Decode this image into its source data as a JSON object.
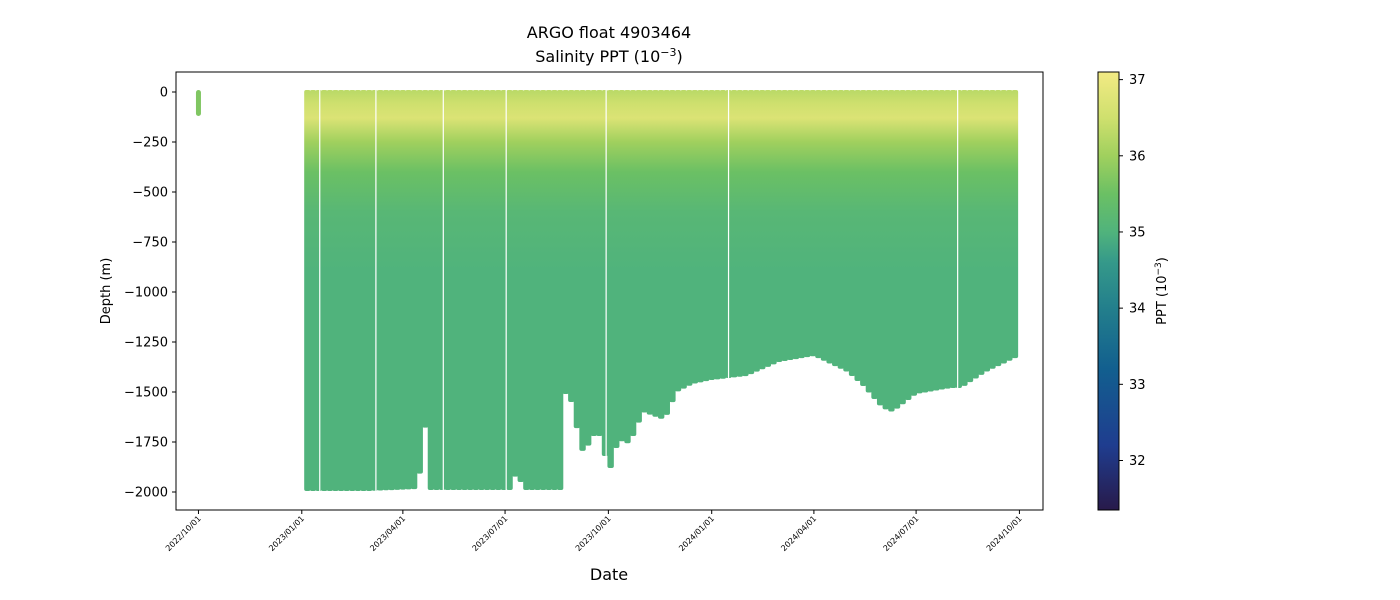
{
  "chart_data": {
    "type": "scatter",
    "title": "ARGO float 4903464",
    "subtitle_prefix": "Salinity PPT (10",
    "subtitle_sup": "−3",
    "subtitle_suffix": ")",
    "xlabel": "Date",
    "ylabel": "Depth (m)",
    "colorbar_label_prefix": "PPT (10",
    "colorbar_label_sup": "−3",
    "colorbar_label_suffix": ")",
    "colormap": "haline",
    "colorbar_range": [
      31.35,
      37.1
    ],
    "ylim": [
      -2090,
      100
    ],
    "xlim": [
      "2022-09-11",
      "2024-10-22"
    ],
    "grid": false,
    "y_ticks": [
      0,
      -250,
      -500,
      -750,
      -1000,
      -1250,
      -1500,
      -1750,
      -2000
    ],
    "y_tick_labels": [
      "0",
      "−250",
      "−500",
      "−750",
      "−1000",
      "−1250",
      "−1500",
      "−1750",
      "−2000"
    ],
    "x_ticks": [
      "2022-10-01",
      "2023-01-01",
      "2023-04-01",
      "2023-07-01",
      "2023-10-01",
      "2024-01-01",
      "2024-04-01",
      "2024-07-01",
      "2024-10-01"
    ],
    "x_tick_labels": [
      "2022/10/01",
      "2023/01/01",
      "2023/04/01",
      "2023/07/01",
      "2023/10/01",
      "2024/01/01",
      "2024/04/01",
      "2024/07/01",
      "2024/10/01"
    ],
    "colorbar_ticks": [
      32,
      33,
      34,
      35,
      36,
      37
    ],
    "colorbar_tick_labels": [
      "32",
      "33",
      "34",
      "35",
      "36",
      "37"
    ],
    "profile_interval_days": 5,
    "data_gaps": [
      "2023-01-17",
      "2023-03-08",
      "2023-05-07",
      "2023-07-02",
      "2023-09-29",
      "2024-01-16",
      "2024-08-07"
    ],
    "profiles": [
      {
        "date": "2022-10-01",
        "max_depth": -120
      },
      {
        "date": "2023-01-01",
        "max_depth": -1995
      },
      {
        "date": "2023-03-01",
        "max_depth": -1995
      },
      {
        "date": "2023-04-15",
        "max_depth": -1985
      },
      {
        "date": "2023-04-20",
        "max_depth": -1600
      },
      {
        "date": "2023-04-25",
        "max_depth": -1990
      },
      {
        "date": "2023-07-06",
        "max_depth": -1990
      },
      {
        "date": "2023-07-12",
        "max_depth": -1890
      },
      {
        "date": "2023-07-17",
        "max_depth": -1990
      },
      {
        "date": "2023-08-20",
        "max_depth": -1990
      },
      {
        "date": "2023-08-25",
        "max_depth": -1390
      },
      {
        "date": "2023-08-30",
        "max_depth": -1590
      },
      {
        "date": "2023-09-10",
        "max_depth": -1840
      },
      {
        "date": "2023-09-15",
        "max_depth": -1720
      },
      {
        "date": "2023-09-25",
        "max_depth": -1720
      },
      {
        "date": "2023-10-01",
        "max_depth": -1920
      },
      {
        "date": "2023-10-10",
        "max_depth": -1740
      },
      {
        "date": "2023-10-20",
        "max_depth": -1760
      },
      {
        "date": "2023-11-01",
        "max_depth": -1600
      },
      {
        "date": "2023-11-10",
        "max_depth": -1620
      },
      {
        "date": "2023-11-20",
        "max_depth": -1640
      },
      {
        "date": "2023-12-01",
        "max_depth": -1500
      },
      {
        "date": "2023-12-15",
        "max_depth": -1460
      },
      {
        "date": "2024-01-01",
        "max_depth": -1440
      },
      {
        "date": "2024-02-01",
        "max_depth": -1420
      },
      {
        "date": "2024-03-01",
        "max_depth": -1350
      },
      {
        "date": "2024-04-01",
        "max_depth": -1320
      },
      {
        "date": "2024-05-01",
        "max_depth": -1400
      },
      {
        "date": "2024-05-15",
        "max_depth": -1470
      },
      {
        "date": "2024-06-01",
        "max_depth": -1580
      },
      {
        "date": "2024-06-10",
        "max_depth": -1600
      },
      {
        "date": "2024-07-01",
        "max_depth": -1510
      },
      {
        "date": "2024-08-01",
        "max_depth": -1480
      },
      {
        "date": "2024-08-10",
        "max_depth": -1480
      },
      {
        "date": "2024-09-01",
        "max_depth": -1400
      },
      {
        "date": "2024-10-01",
        "max_depth": -1320
      }
    ],
    "salinity_by_depth": [
      {
        "depth": 0,
        "value": 36.3
      },
      {
        "depth": -60,
        "value": 36.5
      },
      {
        "depth": -130,
        "value": 36.7
      },
      {
        "depth": -250,
        "value": 36.0
      },
      {
        "depth": -400,
        "value": 35.5
      },
      {
        "depth": -600,
        "value": 35.15
      },
      {
        "depth": -900,
        "value": 35.0
      },
      {
        "depth": -2000,
        "value": 35.0
      }
    ]
  }
}
